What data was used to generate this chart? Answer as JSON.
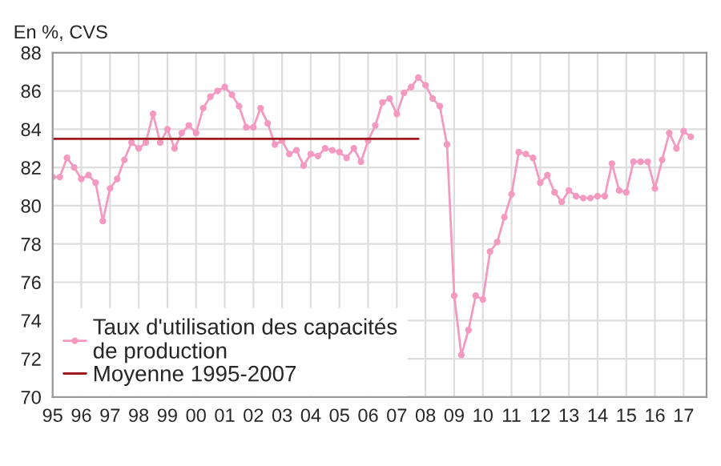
{
  "chart_data": {
    "type": "line",
    "ylabel": "En %, CVS",
    "xlim": [
      1995,
      2017.8
    ],
    "ylim": [
      70,
      88
    ],
    "xticks": [
      {
        "value": 1995,
        "label": "95"
      },
      {
        "value": 1996,
        "label": "96"
      },
      {
        "value": 1997,
        "label": "97"
      },
      {
        "value": 1998,
        "label": "98"
      },
      {
        "value": 1999,
        "label": "99"
      },
      {
        "value": 2000,
        "label": "00"
      },
      {
        "value": 2001,
        "label": "01"
      },
      {
        "value": 2002,
        "label": "02"
      },
      {
        "value": 2003,
        "label": "03"
      },
      {
        "value": 2004,
        "label": "04"
      },
      {
        "value": 2005,
        "label": "05"
      },
      {
        "value": 2006,
        "label": "06"
      },
      {
        "value": 2007,
        "label": "07"
      },
      {
        "value": 2008,
        "label": "08"
      },
      {
        "value": 2009,
        "label": "09"
      },
      {
        "value": 2010,
        "label": "10"
      },
      {
        "value": 2011,
        "label": "11"
      },
      {
        "value": 2012,
        "label": "12"
      },
      {
        "value": 2013,
        "label": "13"
      },
      {
        "value": 2014,
        "label": "14"
      },
      {
        "value": 2015,
        "label": "15"
      },
      {
        "value": 2016,
        "label": "16"
      },
      {
        "value": 2017,
        "label": "17"
      }
    ],
    "yticks": [
      70,
      72,
      74,
      76,
      78,
      80,
      82,
      84,
      86,
      88
    ],
    "grid": true,
    "legend": "bottom left",
    "series": [
      {
        "name": "Taux d'utilisation des capacités\nde production",
        "color": "#f49ac1",
        "marker": "circle",
        "line_style": "solid",
        "x": [
          1995,
          1995.25,
          1995.5,
          1995.75,
          1996,
          1996.25,
          1996.5,
          1996.75,
          1997,
          1997.25,
          1997.5,
          1997.75,
          1998,
          1998.25,
          1998.5,
          1998.75,
          1999,
          1999.25,
          1999.5,
          1999.75,
          2000,
          2000.25,
          2000.5,
          2000.75,
          2001,
          2001.25,
          2001.5,
          2001.75,
          2002,
          2002.25,
          2002.5,
          2002.75,
          2003,
          2003.25,
          2003.5,
          2003.75,
          2004,
          2004.25,
          2004.5,
          2004.75,
          2005,
          2005.25,
          2005.5,
          2005.75,
          2006,
          2006.25,
          2006.5,
          2006.75,
          2007,
          2007.25,
          2007.5,
          2007.75,
          2008,
          2008.25,
          2008.5,
          2008.75,
          2009,
          2009.25,
          2009.5,
          2009.75,
          2010,
          2010.25,
          2010.5,
          2010.75,
          2011,
          2011.25,
          2011.5,
          2011.75,
          2012,
          2012.25,
          2012.5,
          2012.75,
          2013,
          2013.25,
          2013.5,
          2013.75,
          2014,
          2014.25,
          2014.5,
          2014.75,
          2015,
          2015.25,
          2015.5,
          2015.75,
          2016,
          2016.25,
          2016.5,
          2016.75,
          2017,
          2017.25
        ],
        "values": [
          81.5,
          81.5,
          82.5,
          82.0,
          81.4,
          81.6,
          81.2,
          79.2,
          80.9,
          81.4,
          82.4,
          83.3,
          83.0,
          83.3,
          84.8,
          83.3,
          84.0,
          83.0,
          83.8,
          84.2,
          83.8,
          85.1,
          85.7,
          86.0,
          86.2,
          85.8,
          85.2,
          84.1,
          84.1,
          85.1,
          84.3,
          83.2,
          83.4,
          82.7,
          82.9,
          82.1,
          82.7,
          82.6,
          83.0,
          82.9,
          82.8,
          82.5,
          83.0,
          82.3,
          83.4,
          84.2,
          85.4,
          85.6,
          84.8,
          85.9,
          86.2,
          86.7,
          86.3,
          85.6,
          85.2,
          83.2,
          75.3,
          72.2,
          73.5,
          75.3,
          75.1,
          77.6,
          78.1,
          79.4,
          80.6,
          82.8,
          82.7,
          82.5,
          81.2,
          81.6,
          80.7,
          80.2,
          80.8,
          80.5,
          80.4,
          80.4,
          80.5,
          80.5,
          82.2,
          80.8,
          80.7,
          82.3,
          82.3,
          82.3,
          80.9,
          82.4,
          83.8,
          83.0,
          83.9,
          83.6
        ]
      },
      {
        "name": "Moyenne 1995-2007",
        "color": "#9e1b1b",
        "marker": "none",
        "line_style": "solid",
        "x": [
          1995,
          2007.75
        ],
        "values": [
          83.5,
          83.5
        ]
      }
    ]
  }
}
